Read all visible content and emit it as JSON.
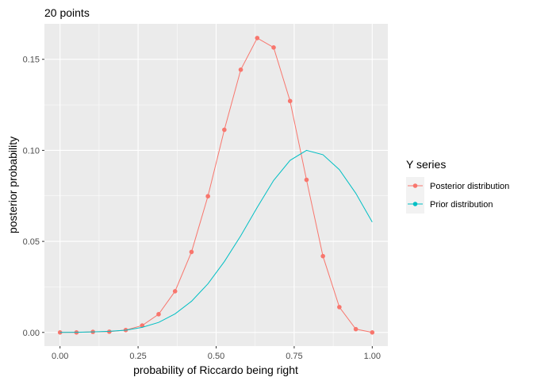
{
  "chart_data": {
    "type": "line",
    "title": "20 points",
    "xlabel": "probability of Riccardo being right",
    "ylabel": "posterior probability",
    "xlim": [
      -0.05,
      1.05
    ],
    "ylim": [
      -0.0075,
      0.1695
    ],
    "x_ticks": [
      0.0,
      0.25,
      0.5,
      0.75,
      1.0
    ],
    "x_tick_labels": [
      "0.00",
      "0.25",
      "0.50",
      "0.75",
      "1.00"
    ],
    "y_ticks": [
      0.0,
      0.05,
      0.1,
      0.15
    ],
    "y_tick_labels": [
      "0.00",
      "0.05",
      "0.10",
      "0.15"
    ],
    "grid": true,
    "legend": {
      "title": "Y series",
      "position": "right"
    },
    "series": [
      {
        "name": "Posterior distribution",
        "color": "#F8766D",
        "markers": true,
        "x": [
          0.0,
          0.0526,
          0.1053,
          0.1579,
          0.2105,
          0.2632,
          0.3158,
          0.3684,
          0.4211,
          0.4737,
          0.5263,
          0.5789,
          0.6316,
          0.6842,
          0.7368,
          0.7895,
          0.8421,
          0.8947,
          0.9474,
          1.0
        ],
        "y": [
          0.0,
          0.0,
          0.0003,
          0.0004,
          0.0013,
          0.0038,
          0.01,
          0.0226,
          0.0442,
          0.0748,
          0.1113,
          0.1443,
          0.1617,
          0.1565,
          0.1271,
          0.0838,
          0.0419,
          0.0139,
          0.0018,
          0.0
        ]
      },
      {
        "name": "Prior distribution",
        "color": "#00BFC4",
        "markers": false,
        "x": [
          0.0,
          0.0526,
          0.1053,
          0.1579,
          0.2105,
          0.2632,
          0.3158,
          0.3684,
          0.4211,
          0.4737,
          0.5263,
          0.5789,
          0.6316,
          0.6842,
          0.7368,
          0.7895,
          0.8421,
          0.8947,
          0.9474,
          1.0
        ],
        "y": [
          0.0,
          0.0001,
          0.0003,
          0.0006,
          0.0012,
          0.0028,
          0.0055,
          0.0102,
          0.0171,
          0.0267,
          0.0389,
          0.0531,
          0.0687,
          0.0835,
          0.0945,
          0.1,
          0.0976,
          0.0894,
          0.0764,
          0.0606
        ]
      }
    ]
  }
}
